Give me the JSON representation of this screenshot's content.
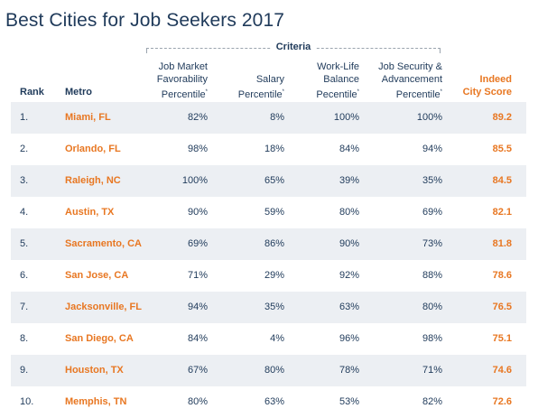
{
  "title": "Best Cities for Job Seekers 2017",
  "criteria_label": "Criteria",
  "headers": {
    "rank": "Rank",
    "metro": "Metro",
    "job_market": [
      "Job Market",
      "Favorability",
      "Percentile"
    ],
    "salary": [
      "Salary",
      "Percentile"
    ],
    "work_life": [
      "Work-Life",
      "Balance",
      "Pecentile"
    ],
    "job_security": [
      "Job Security &",
      "Advancement",
      "Percentile"
    ],
    "score": [
      "Indeed",
      "City Score"
    ],
    "footnote_mark": "*"
  },
  "colors": {
    "title": "#1f3a5a",
    "accent_orange": "#e87722",
    "row_shade": "#eceff3",
    "dashed_bracket": "#9aa4ae"
  },
  "chart_data": {
    "type": "table",
    "title": "Best Cities for Job Seekers 2017",
    "columns": [
      "Rank",
      "Metro",
      "Job Market Favorability Percentile",
      "Salary Percentile",
      "Work-Life Balance Pecentile",
      "Job Security & Advancement Percentile",
      "Indeed City Score"
    ],
    "rows": [
      {
        "rank": "1.",
        "metro": "Miami, FL",
        "job_market": "82%",
        "salary": "8%",
        "work_life": "100%",
        "job_security": "100%",
        "score": "89.2"
      },
      {
        "rank": "2.",
        "metro": "Orlando, FL",
        "job_market": "98%",
        "salary": "18%",
        "work_life": "84%",
        "job_security": "94%",
        "score": "85.5"
      },
      {
        "rank": "3.",
        "metro": "Raleigh, NC",
        "job_market": "100%",
        "salary": "65%",
        "work_life": "39%",
        "job_security": "35%",
        "score": "84.5"
      },
      {
        "rank": "4.",
        "metro": "Austin, TX",
        "job_market": "90%",
        "salary": "59%",
        "work_life": "80%",
        "job_security": "69%",
        "score": "82.1"
      },
      {
        "rank": "5.",
        "metro": "Sacramento, CA",
        "job_market": "69%",
        "salary": "86%",
        "work_life": "90%",
        "job_security": "73%",
        "score": "81.8"
      },
      {
        "rank": "6.",
        "metro": "San Jose, CA",
        "job_market": "71%",
        "salary": "29%",
        "work_life": "92%",
        "job_security": "88%",
        "score": "78.6"
      },
      {
        "rank": "7.",
        "metro": "Jacksonville, FL",
        "job_market": "94%",
        "salary": "35%",
        "work_life": "63%",
        "job_security": "80%",
        "score": "76.5"
      },
      {
        "rank": "8.",
        "metro": "San Diego, CA",
        "job_market": "84%",
        "salary": "4%",
        "work_life": "96%",
        "job_security": "98%",
        "score": "75.1"
      },
      {
        "rank": "9.",
        "metro": "Houston, TX",
        "job_market": "67%",
        "salary": "80%",
        "work_life": "78%",
        "job_security": "71%",
        "score": "74.6"
      },
      {
        "rank": "10.",
        "metro": "Memphis, TN",
        "job_market": "80%",
        "salary": "63%",
        "work_life": "53%",
        "job_security": "82%",
        "score": "72.6"
      }
    ]
  }
}
